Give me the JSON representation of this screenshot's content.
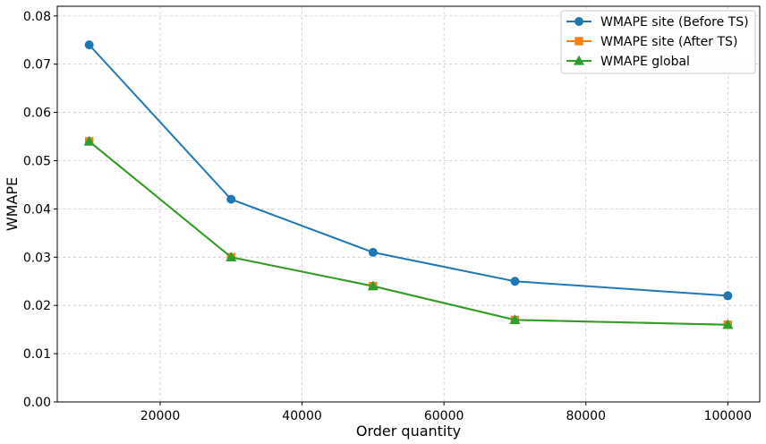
{
  "chart_data": {
    "type": "line",
    "xlabel": "Order quantity",
    "ylabel": "WMAPE",
    "xlim": [
      5500,
      104500
    ],
    "ylim": [
      0,
      0.082
    ],
    "grid": true,
    "legend_position": "top-right",
    "x": [
      10000,
      30000,
      50000,
      70000,
      100000
    ],
    "xticks": [
      20000,
      40000,
      60000,
      80000,
      100000
    ],
    "xtick_labels": [
      "20000",
      "40000",
      "60000",
      "80000",
      "100000"
    ],
    "yticks": [
      0,
      0.01,
      0.02,
      0.03,
      0.04,
      0.05,
      0.06,
      0.07,
      0.08
    ],
    "ytick_labels": [
      "0.00",
      "0.01",
      "0.02",
      "0.03",
      "0.04",
      "0.05",
      "0.06",
      "0.07",
      "0.08"
    ],
    "series": [
      {
        "name": "WMAPE site (Before TS)",
        "values": [
          0.074,
          0.042,
          0.031,
          0.025,
          0.022
        ],
        "color": "#1f77b4",
        "marker": "circle"
      },
      {
        "name": "WMAPE site (After TS)",
        "values": [
          0.054,
          0.03,
          0.024,
          0.017,
          0.016
        ],
        "color": "#ff7f0e",
        "marker": "square"
      },
      {
        "name": "WMAPE global",
        "values": [
          0.054,
          0.03,
          0.024,
          0.017,
          0.016
        ],
        "color": "#2ca02c",
        "marker": "triangle"
      }
    ]
  }
}
